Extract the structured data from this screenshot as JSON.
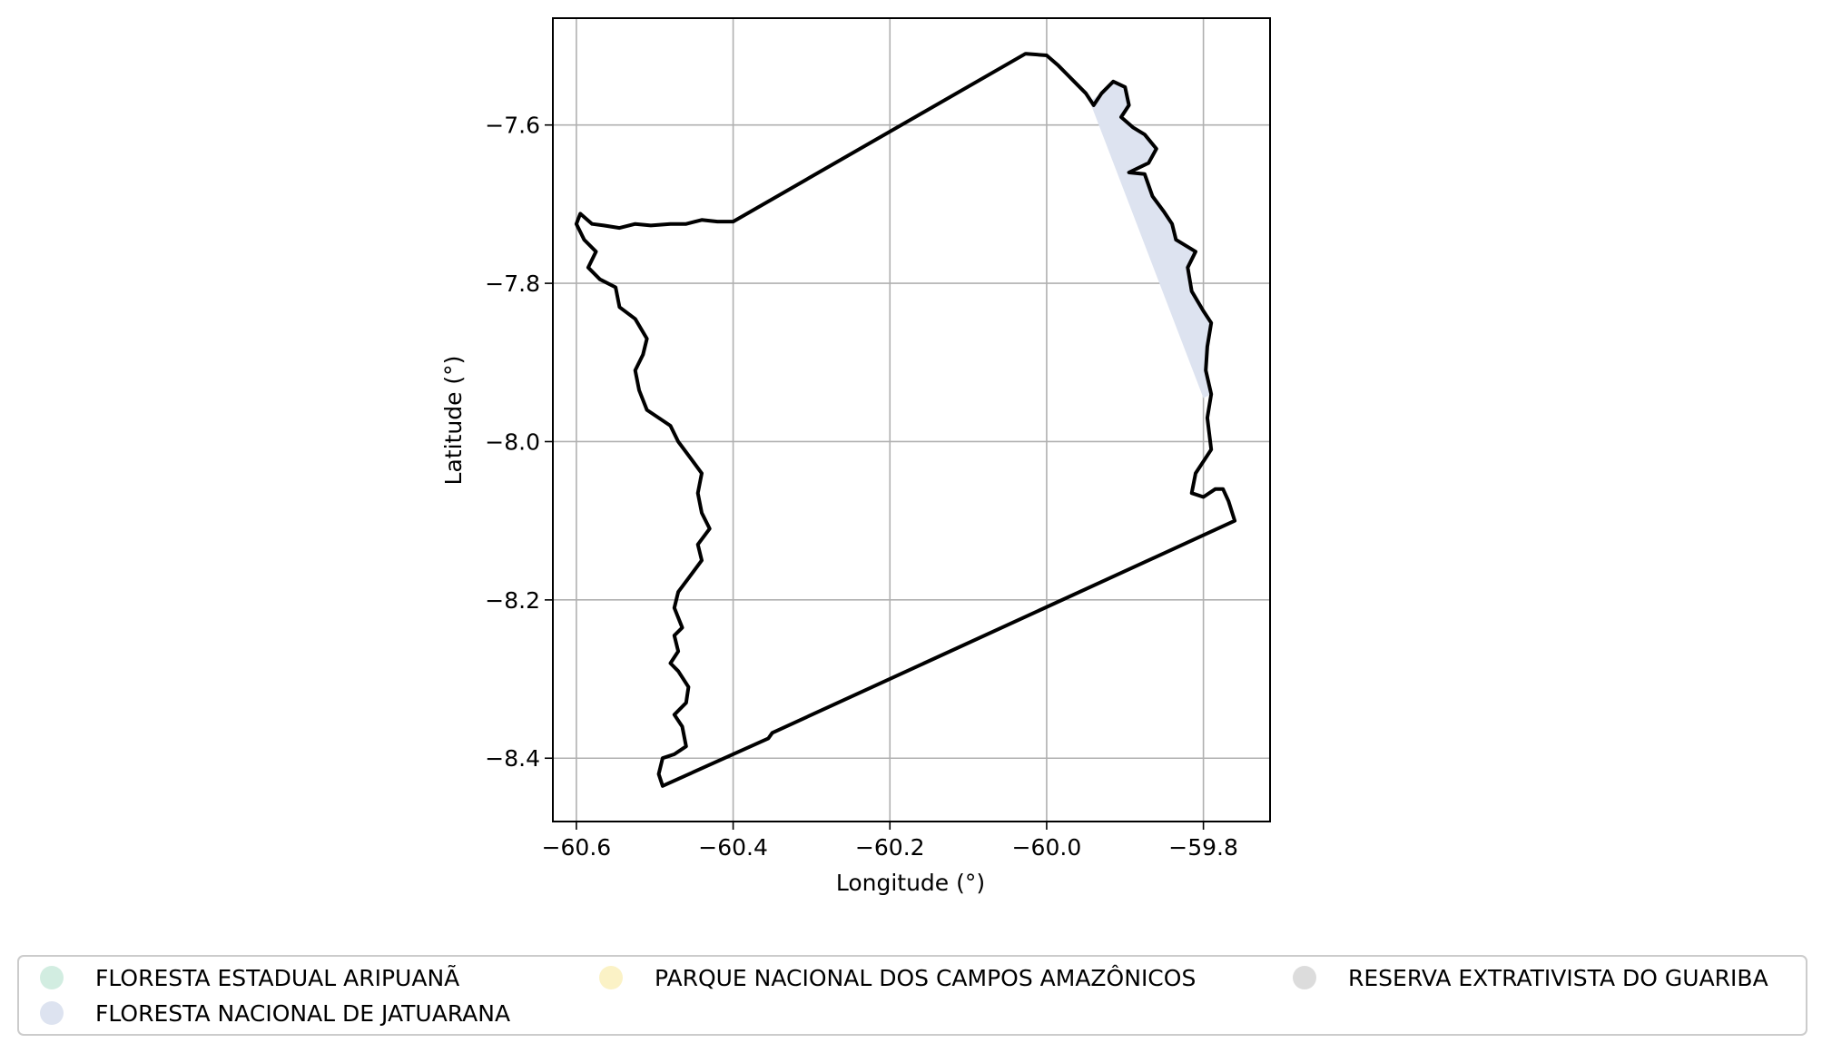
{
  "chart_data": {
    "type": "map",
    "xlabel": "Longitude (°)",
    "ylabel": "Latitude (°)",
    "xlim": [
      -60.63,
      -59.715
    ],
    "ylim": [
      -8.48,
      -7.465
    ],
    "xticks": [
      -60.6,
      -60.4,
      -60.2,
      -60.0,
      -59.8
    ],
    "yticks": [
      -7.6,
      -7.8,
      -8.0,
      -8.2,
      -8.4
    ],
    "xtick_labels": [
      "−60.6",
      "−60.4",
      "−60.2",
      "−60.0",
      "−59.8"
    ],
    "ytick_labels": [
      "−7.6",
      "−7.8",
      "−8.0",
      "−8.2",
      "−8.4"
    ],
    "grid": true,
    "legend_placement": "below",
    "outline": {
      "color": "#000000",
      "lonlat": [
        [
          -60.026,
          -7.51
        ],
        [
          -60.0,
          -7.512
        ],
        [
          -59.985,
          -7.525
        ],
        [
          -59.975,
          -7.535
        ],
        [
          -59.965,
          -7.545
        ],
        [
          -59.95,
          -7.56
        ],
        [
          -59.94,
          -7.575
        ],
        [
          -59.93,
          -7.56
        ],
        [
          -59.915,
          -7.545
        ],
        [
          -59.9,
          -7.552
        ],
        [
          -59.895,
          -7.575
        ],
        [
          -59.905,
          -7.59
        ],
        [
          -59.89,
          -7.603
        ],
        [
          -59.875,
          -7.612
        ],
        [
          -59.86,
          -7.63
        ],
        [
          -59.87,
          -7.648
        ],
        [
          -59.895,
          -7.66
        ],
        [
          -59.875,
          -7.662
        ],
        [
          -59.865,
          -7.69
        ],
        [
          -59.85,
          -7.71
        ],
        [
          -59.84,
          -7.725
        ],
        [
          -59.835,
          -7.745
        ],
        [
          -59.81,
          -7.76
        ],
        [
          -59.82,
          -7.78
        ],
        [
          -59.815,
          -7.81
        ],
        [
          -59.8,
          -7.835
        ],
        [
          -59.79,
          -7.85
        ],
        [
          -59.795,
          -7.88
        ],
        [
          -59.797,
          -7.91
        ],
        [
          -59.79,
          -7.94
        ],
        [
          -59.795,
          -7.97
        ],
        [
          -59.79,
          -8.01
        ],
        [
          -59.8,
          -8.025
        ],
        [
          -59.81,
          -8.04
        ],
        [
          -59.815,
          -8.065
        ],
        [
          -59.8,
          -8.07
        ],
        [
          -59.785,
          -8.06
        ],
        [
          -59.775,
          -8.06
        ],
        [
          -59.768,
          -8.075
        ],
        [
          -59.76,
          -8.1
        ],
        [
          -60.35,
          -8.368
        ],
        [
          -60.355,
          -8.375
        ],
        [
          -60.49,
          -8.435
        ],
        [
          -60.495,
          -8.42
        ],
        [
          -60.49,
          -8.4
        ],
        [
          -60.475,
          -8.395
        ],
        [
          -60.46,
          -8.385
        ],
        [
          -60.465,
          -8.36
        ],
        [
          -60.475,
          -8.345
        ],
        [
          -60.46,
          -8.33
        ],
        [
          -60.457,
          -8.31
        ],
        [
          -60.47,
          -8.29
        ],
        [
          -60.48,
          -8.28
        ],
        [
          -60.47,
          -8.265
        ],
        [
          -60.475,
          -8.245
        ],
        [
          -60.465,
          -8.235
        ],
        [
          -60.475,
          -8.21
        ],
        [
          -60.47,
          -8.19
        ],
        [
          -60.455,
          -8.17
        ],
        [
          -60.44,
          -8.15
        ],
        [
          -60.445,
          -8.13
        ],
        [
          -60.43,
          -8.11
        ],
        [
          -60.44,
          -8.09
        ],
        [
          -60.445,
          -8.065
        ],
        [
          -60.44,
          -8.04
        ],
        [
          -60.455,
          -8.02
        ],
        [
          -60.47,
          -8.0
        ],
        [
          -60.48,
          -7.98
        ],
        [
          -60.51,
          -7.96
        ],
        [
          -60.52,
          -7.935
        ],
        [
          -60.525,
          -7.91
        ],
        [
          -60.515,
          -7.89
        ],
        [
          -60.51,
          -7.87
        ],
        [
          -60.525,
          -7.845
        ],
        [
          -60.545,
          -7.83
        ],
        [
          -60.55,
          -7.805
        ],
        [
          -60.57,
          -7.795
        ],
        [
          -60.585,
          -7.78
        ],
        [
          -60.575,
          -7.76
        ],
        [
          -60.59,
          -7.745
        ],
        [
          -60.6,
          -7.725
        ],
        [
          -60.595,
          -7.712
        ],
        [
          -60.58,
          -7.725
        ],
        [
          -60.565,
          -7.727
        ],
        [
          -60.545,
          -7.73
        ],
        [
          -60.525,
          -7.725
        ],
        [
          -60.505,
          -7.727
        ],
        [
          -60.48,
          -7.725
        ],
        [
          -60.46,
          -7.725
        ],
        [
          -60.44,
          -7.72
        ],
        [
          -60.42,
          -7.722
        ],
        [
          -60.4,
          -7.722
        ],
        [
          -60.027,
          -7.51
        ]
      ]
    },
    "filled_areas": [
      {
        "name": "FLORESTA NACIONAL DE JATUARANA",
        "color": "#dde3f0",
        "lonlat": [
          [
            -59.945,
            -7.57
          ],
          [
            -59.93,
            -7.56
          ],
          [
            -59.915,
            -7.545
          ],
          [
            -59.9,
            -7.552
          ],
          [
            -59.895,
            -7.575
          ],
          [
            -59.905,
            -7.59
          ],
          [
            -59.89,
            -7.603
          ],
          [
            -59.875,
            -7.612
          ],
          [
            -59.86,
            -7.63
          ],
          [
            -59.87,
            -7.648
          ],
          [
            -59.895,
            -7.66
          ],
          [
            -59.875,
            -7.662
          ],
          [
            -59.865,
            -7.69
          ],
          [
            -59.85,
            -7.71
          ],
          [
            -59.84,
            -7.725
          ],
          [
            -59.835,
            -7.745
          ],
          [
            -59.81,
            -7.76
          ],
          [
            -59.82,
            -7.78
          ],
          [
            -59.815,
            -7.81
          ],
          [
            -59.8,
            -7.835
          ],
          [
            -59.79,
            -7.85
          ],
          [
            -59.795,
            -7.88
          ],
          [
            -59.797,
            -7.91
          ],
          [
            -59.79,
            -7.94
          ],
          [
            -59.8,
            -7.945
          ],
          [
            -59.945,
            -7.57
          ]
        ]
      }
    ],
    "legend": [
      {
        "name": "FLORESTA ESTADUAL ARIPUANÃ",
        "color": "#d2ede1"
      },
      {
        "name": "FLORESTA NACIONAL DE JATUARANA",
        "color": "#dde3f0"
      },
      {
        "name": "PARQUE NACIONAL DOS CAMPOS AMAZÔNICOS",
        "color": "#fbf2c6"
      },
      {
        "name": "RESERVA EXTRATIVISTA DO GUARIBA",
        "color": "#dcdcdc"
      }
    ]
  }
}
